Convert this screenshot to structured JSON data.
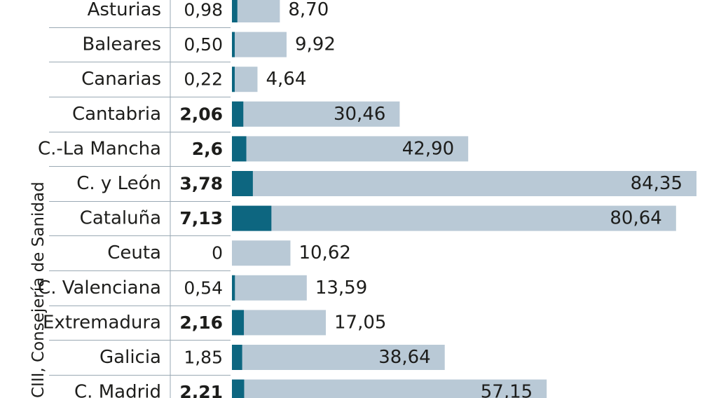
{
  "source_label": "CIII, Consejería de Sanidad",
  "colors": {
    "big_bar": "#b9c9d6",
    "small_bar": "#0d6680",
    "separator": "#9aa9b4",
    "text": "#1d1d1b"
  },
  "chart_data": {
    "type": "bar",
    "orientation": "horizontal",
    "categories": [
      "Asturias",
      "Baleares",
      "Canarias",
      "Cantabria",
      "C.-La Mancha",
      "C. y León",
      "Cataluña",
      "Ceuta",
      "C. Valenciana",
      "Extremadura",
      "Galicia",
      "C. Madrid"
    ],
    "series": [
      {
        "values": [
          0.98,
          0.5,
          0.22,
          2.06,
          2.6,
          3.78,
          7.13,
          0,
          0.54,
          2.16,
          1.85,
          2.21
        ],
        "labels": [
          "0,98",
          "0,50",
          "0,22",
          "2,06",
          "2,6",
          "3,78",
          "7,13",
          "0",
          "0,54",
          "2,16",
          "1,85",
          "2,21"
        ],
        "bold": [
          false,
          false,
          false,
          true,
          true,
          true,
          true,
          false,
          false,
          true,
          false,
          true
        ]
      },
      {
        "values": [
          8.7,
          9.92,
          4.64,
          30.46,
          42.9,
          84.35,
          80.64,
          10.62,
          13.59,
          17.05,
          38.64,
          57.15
        ],
        "labels": [
          "8,70",
          "9,92",
          "4,64",
          "30,46",
          "42,90",
          "84,35",
          "80,64",
          "10,62",
          "13,59",
          "17,05",
          "38,64",
          "57,15"
        ]
      }
    ],
    "xlim": [
      0,
      84.35
    ],
    "grid": false,
    "legend": "none"
  }
}
